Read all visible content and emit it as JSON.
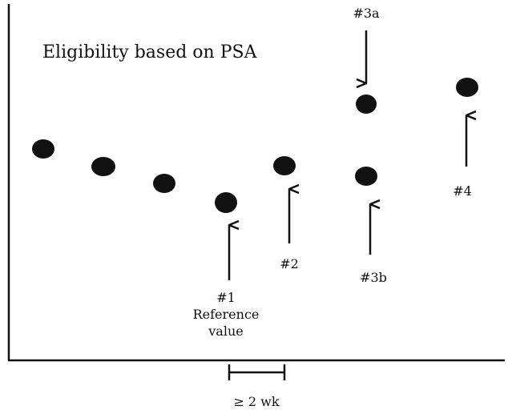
{
  "title": "Eligibility based on PSA",
  "interval_label": "≥ 2 wk",
  "labels": {
    "l1": "#1",
    "l1_sub1": "Reference",
    "l1_sub2": "value",
    "l2": "#2",
    "l3a": "#3a",
    "l3b": "#3b",
    "l4": "#4"
  },
  "colors": {
    "ink": "#111111",
    "background": "#ffffff"
  }
}
